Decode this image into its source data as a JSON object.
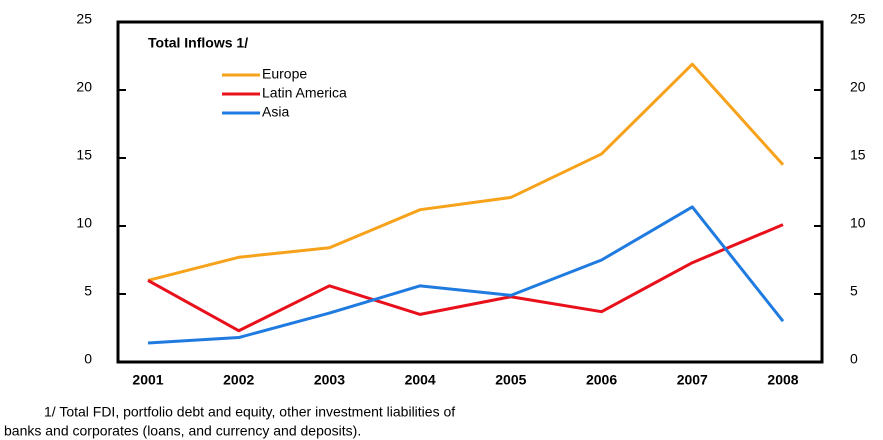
{
  "chart_data": {
    "type": "line",
    "subtitle": "Total Inflows 1/",
    "categories": [
      "2001",
      "2002",
      "2003",
      "2004",
      "2005",
      "2006",
      "2007",
      "2008"
    ],
    "series": [
      {
        "name": "Europe",
        "color": "#f7a21b",
        "values": [
          6.0,
          7.7,
          8.4,
          11.2,
          12.1,
          15.3,
          21.9,
          14.5
        ]
      },
      {
        "name": "Latin America",
        "color": "#e8101a",
        "values": [
          6.0,
          2.3,
          5.6,
          3.5,
          4.8,
          3.7,
          7.3,
          10.1
        ]
      },
      {
        "name": "Asia",
        "color": "#1f7be0",
        "values": [
          1.4,
          1.8,
          3.6,
          5.6,
          4.9,
          7.5,
          11.4,
          3.0
        ]
      }
    ],
    "ylim": [
      0,
      25
    ],
    "yticks": [
      0,
      5,
      10,
      15,
      20,
      25
    ],
    "y2lim": [
      0,
      25
    ],
    "y2ticks": [
      0,
      5,
      10,
      15,
      20,
      25
    ],
    "legend": "upper-left",
    "footnote": [
      "1/ Total FDI, portfolio debt and equity, other investment liabilities of",
      "banks and corporates (loans, and currency and deposits)."
    ]
  }
}
